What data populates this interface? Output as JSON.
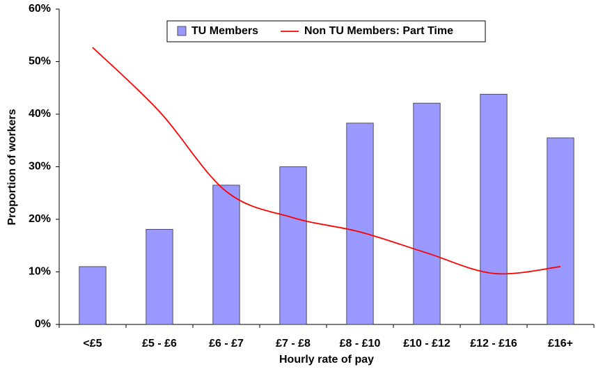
{
  "chart_data": {
    "type": "bar",
    "x_label": "Hourly rate of pay",
    "y_label": "Proportion of workers",
    "categories": [
      "<£5",
      "£5 - £6",
      "£6 - £7",
      "£7 - £8",
      "£8 - £10",
      "£10 - £12",
      "£12 - £16",
      "£16+"
    ],
    "series": [
      {
        "name": "TU Members",
        "type": "bar",
        "color": "#9999ff",
        "values": [
          11,
          18.1,
          26.5,
          30,
          38.3,
          42.1,
          43.8,
          35.5
        ]
      },
      {
        "name": "Non TU Members: Part Time",
        "type": "line",
        "color": "#ff0000",
        "values": [
          52.7,
          40.5,
          25.3,
          20.3,
          17.6,
          13.6,
          9.7,
          11
        ]
      }
    ],
    "ylim": [
      0,
      60
    ],
    "yticks": [
      {
        "value": 0,
        "label": "0%"
      },
      {
        "value": 10,
        "label": "10%"
      },
      {
        "value": 20,
        "label": "20%"
      },
      {
        "value": 30,
        "label": "30%"
      },
      {
        "value": 40,
        "label": "40%"
      },
      {
        "value": 50,
        "label": "50%"
      },
      {
        "value": 60,
        "label": "60%"
      }
    ],
    "legend": "top"
  }
}
